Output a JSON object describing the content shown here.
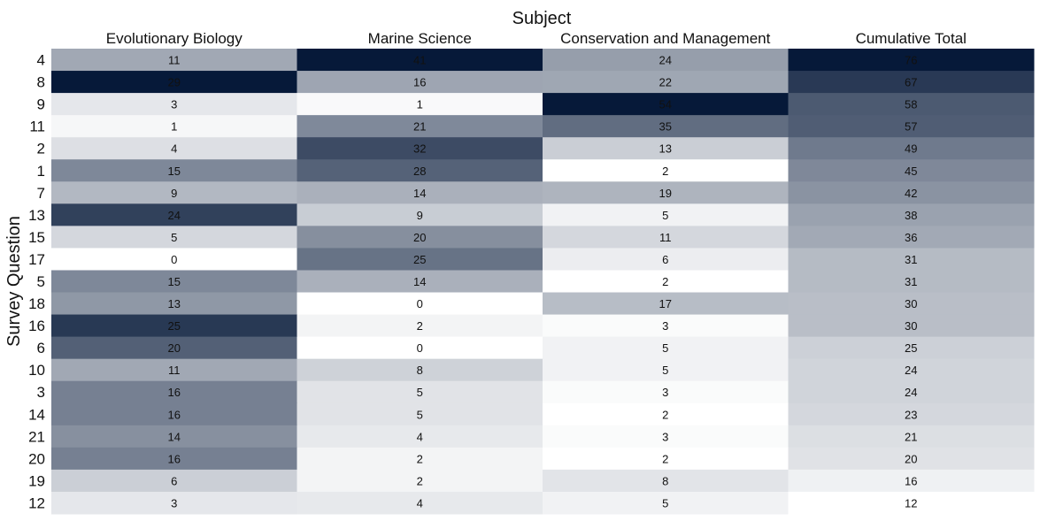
{
  "chart_data": {
    "type": "heatmap",
    "x_title": "Subject",
    "y_title": "Survey Question",
    "columns": [
      "Evolutionary Biology",
      "Marine Science",
      "Conservation and Management",
      "Cumulative Total"
    ],
    "rows": [
      "4",
      "8",
      "9",
      "11",
      "2",
      "1",
      "7",
      "13",
      "15",
      "17",
      "5",
      "18",
      "16",
      "6",
      "10",
      "3",
      "14",
      "21",
      "20",
      "19",
      "12"
    ],
    "values": [
      [
        11,
        41,
        24,
        76
      ],
      [
        29,
        16,
        22,
        67
      ],
      [
        3,
        1,
        54,
        58
      ],
      [
        1,
        21,
        35,
        57
      ],
      [
        4,
        32,
        13,
        49
      ],
      [
        15,
        28,
        2,
        45
      ],
      [
        9,
        14,
        19,
        42
      ],
      [
        24,
        9,
        5,
        38
      ],
      [
        5,
        20,
        11,
        36
      ],
      [
        0,
        25,
        6,
        31
      ],
      [
        15,
        14,
        2,
        31
      ],
      [
        13,
        0,
        17,
        30
      ],
      [
        25,
        2,
        3,
        30
      ],
      [
        20,
        0,
        5,
        25
      ],
      [
        11,
        8,
        5,
        24
      ],
      [
        16,
        5,
        3,
        24
      ],
      [
        16,
        5,
        2,
        23
      ],
      [
        14,
        4,
        3,
        21
      ],
      [
        16,
        2,
        2,
        20
      ],
      [
        6,
        2,
        8,
        16
      ],
      [
        3,
        4,
        5,
        12
      ]
    ],
    "colormap": {
      "low": "#ffffff",
      "high": "#061939"
    },
    "color_scale": "per-column"
  }
}
